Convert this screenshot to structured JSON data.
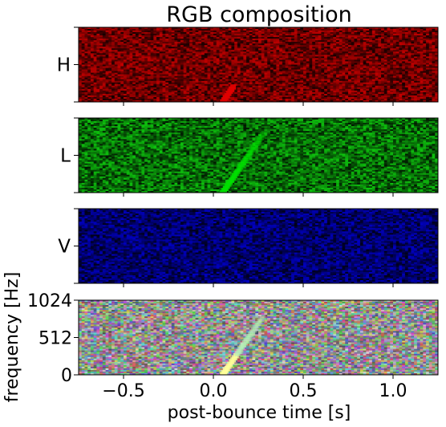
{
  "chart_data": {
    "type": "heatmap",
    "title": "RGB composition",
    "xlabel": "post-bounce time [s]",
    "ylabel": "frequency [Hz]",
    "xlim": [
      -0.75,
      1.25
    ],
    "ylim": [
      0,
      1024
    ],
    "xticks": [
      -0.5,
      0.0,
      0.5,
      1.0
    ],
    "xtick_labels": [
      "−0.5",
      "0.0",
      "0.5",
      "1.0"
    ],
    "yticks": [
      0,
      512,
      1024
    ],
    "ytick_labels": [
      "0",
      "512",
      "1024"
    ],
    "panels": [
      {
        "name": "H",
        "label": "H",
        "color": "#e00000",
        "base_color": "#8a0000"
      },
      {
        "name": "L",
        "label": "L",
        "color": "#00e000",
        "base_color": "#0a8a0a"
      },
      {
        "name": "V",
        "label": "V",
        "color": "#0000e0",
        "base_color": "#00008a"
      },
      {
        "name": "RGB",
        "label": "",
        "color": "#ffffff",
        "base_color": "#808080"
      }
    ],
    "signal_track": {
      "t_start": 0.05,
      "f_start": 0,
      "t_end": 0.28,
      "f_end": 820,
      "highlight_color": "#ffff99"
    }
  }
}
